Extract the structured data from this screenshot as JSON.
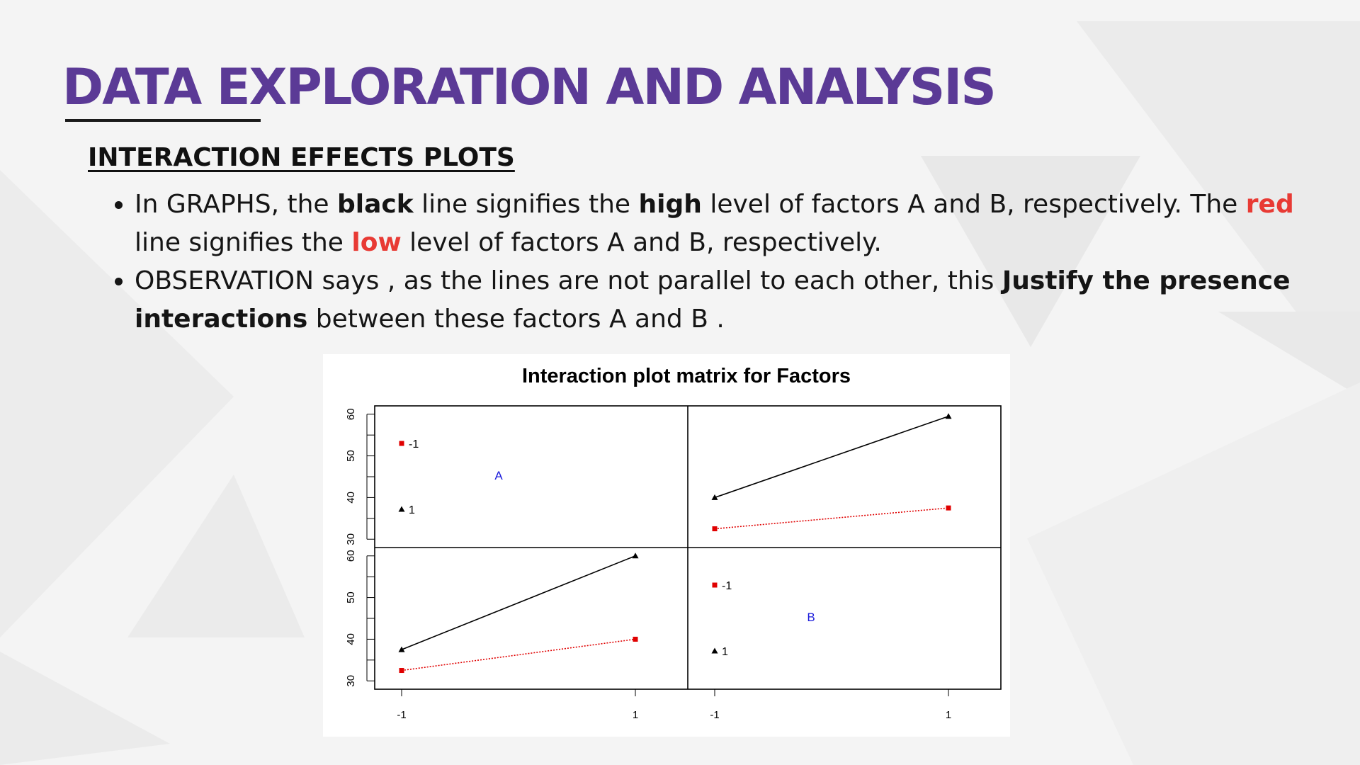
{
  "slide": {
    "title": "DATA EXPLORATION AND ANALYSIS",
    "subtitle": "INTERACTION EFFECTS PLOTS",
    "bullets": [
      {
        "parts": [
          {
            "text": "In GRAPHS, the ",
            "style": "normal"
          },
          {
            "text": "black",
            "style": "bold"
          },
          {
            "text": " line signifies the ",
            "style": "normal"
          },
          {
            "text": "high",
            "style": "bold"
          },
          {
            "text": " level of factors A and B, respectively. The ",
            "style": "normal"
          },
          {
            "text": "red",
            "style": "red"
          },
          {
            "text": " line signifies the ",
            "style": "normal"
          },
          {
            "text": "low",
            "style": "red"
          },
          {
            "text": " level of factors A and B, respectively.",
            "style": "normal"
          }
        ]
      },
      {
        "parts": [
          {
            "text": "OBSERVATION says , as the lines are not parallel to each other, this ",
            "style": "normal"
          },
          {
            "text": "Justify the presence interactions",
            "style": "bold"
          },
          {
            "text": " between these factors A and B .",
            "style": "normal"
          }
        ]
      }
    ],
    "colors": {
      "title": "#5b3a96",
      "emphasis_red": "#e83a34",
      "text": "#151515"
    }
  },
  "chart_data": {
    "type": "line",
    "title": "Interaction plot matrix for Factors",
    "ylim": [
      28,
      62
    ],
    "y_ticks": [
      30,
      40,
      50,
      60
    ],
    "x_ticks": [
      "-1",
      "1"
    ],
    "grid": false,
    "factors": [
      "A",
      "B"
    ],
    "legend_entries": [
      {
        "label": "-1",
        "color": "#e00000",
        "marker": "square"
      },
      {
        "label": "1",
        "color": "#000000",
        "marker": "triangle"
      }
    ],
    "panels": [
      {
        "position": "top-right",
        "series": [
          {
            "name": "1",
            "color": "#000000",
            "marker": "triangle",
            "style": "solid",
            "values": [
              40,
              59.5
            ]
          },
          {
            "name": "-1",
            "color": "#e00000",
            "marker": "square",
            "style": "dotted",
            "values": [
              32.5,
              37.5
            ]
          }
        ]
      },
      {
        "position": "bottom-left",
        "series": [
          {
            "name": "1",
            "color": "#000000",
            "marker": "triangle",
            "style": "solid",
            "values": [
              37.5,
              60
            ]
          },
          {
            "name": "-1",
            "color": "#e00000",
            "marker": "square",
            "style": "dotted",
            "values": [
              32.5,
              40
            ]
          }
        ]
      }
    ]
  }
}
